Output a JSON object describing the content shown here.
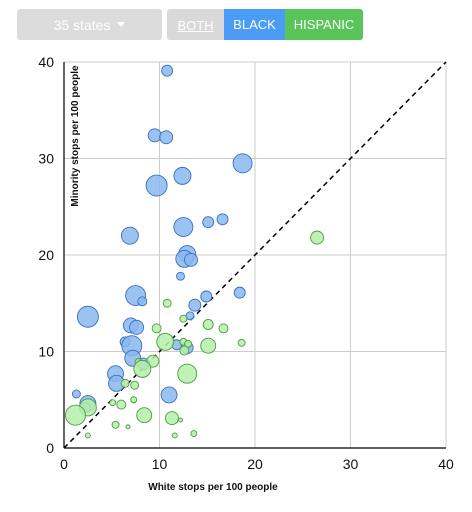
{
  "controls": {
    "state_select": "35 states",
    "toggle_both": "BOTH",
    "toggle_black": "BLACK",
    "toggle_hispanic": "HISPANIC"
  },
  "colors": {
    "black_fill": "#8ab8f0",
    "black_stroke": "#3a6fc0",
    "hispanic_fill": "#b5eeaa",
    "hispanic_stroke": "#4a9e3e",
    "grid": "#cccccc",
    "axis": "#000000",
    "reference_line": "#000000"
  },
  "chart_data": {
    "type": "scatter",
    "xlabel": "White stops per 100 people",
    "ylabel": "Minority stops per 100 people",
    "xlim": [
      0,
      40
    ],
    "ylim": [
      0,
      40
    ],
    "x_ticks": [
      0,
      10,
      20,
      30,
      40
    ],
    "y_ticks": [
      0,
      10,
      20,
      30,
      40
    ],
    "grid": true,
    "reference_line": "y = x (dashed)",
    "series": [
      {
        "name": "BLACK",
        "points": [
          {
            "x": 10.8,
            "y": 39.1,
            "r": 5.5
          },
          {
            "x": 9.5,
            "y": 32.4,
            "r": 6.5
          },
          {
            "x": 10.7,
            "y": 32.2,
            "r": 6.5
          },
          {
            "x": 18.7,
            "y": 29.5,
            "r": 9.5
          },
          {
            "x": 9.7,
            "y": 27.2,
            "r": 10.5
          },
          {
            "x": 12.4,
            "y": 28.2,
            "r": 8.5
          },
          {
            "x": 15.1,
            "y": 23.4,
            "r": 5.5
          },
          {
            "x": 16.6,
            "y": 23.7,
            "r": 5.5
          },
          {
            "x": 12.5,
            "y": 22.9,
            "r": 9.5
          },
          {
            "x": 6.9,
            "y": 22.0,
            "r": 8.5
          },
          {
            "x": 12.9,
            "y": 20.1,
            "r": 8.5
          },
          {
            "x": 12.6,
            "y": 19.6,
            "r": 8.5
          },
          {
            "x": 13.3,
            "y": 19.5,
            "r": 6.5
          },
          {
            "x": 12.2,
            "y": 17.8,
            "r": 4.0
          },
          {
            "x": 7.5,
            "y": 15.8,
            "r": 10.0
          },
          {
            "x": 8.2,
            "y": 15.2,
            "r": 4.5
          },
          {
            "x": 18.4,
            "y": 16.1,
            "r": 5.5
          },
          {
            "x": 14.9,
            "y": 15.7,
            "r": 5.5
          },
          {
            "x": 2.5,
            "y": 13.6,
            "r": 10.5
          },
          {
            "x": 13.7,
            "y": 14.8,
            "r": 6.0
          },
          {
            "x": 13.2,
            "y": 13.7,
            "r": 4.0
          },
          {
            "x": 7.0,
            "y": 12.7,
            "r": 7.5
          },
          {
            "x": 7.6,
            "y": 12.5,
            "r": 7.0
          },
          {
            "x": 6.4,
            "y": 11.0,
            "r": 5.0
          },
          {
            "x": 7.1,
            "y": 10.6,
            "r": 10.0
          },
          {
            "x": 12.9,
            "y": 10.4,
            "r": 6.0
          },
          {
            "x": 11.8,
            "y": 10.7,
            "r": 5.0
          },
          {
            "x": 7.2,
            "y": 9.3,
            "r": 8.0
          },
          {
            "x": 8.3,
            "y": 8.7,
            "r": 6.0
          },
          {
            "x": 5.4,
            "y": 7.7,
            "r": 8.0
          },
          {
            "x": 5.5,
            "y": 6.7,
            "r": 8.0
          },
          {
            "x": 1.3,
            "y": 5.6,
            "r": 4.0
          },
          {
            "x": 11.0,
            "y": 5.5,
            "r": 8.0
          },
          {
            "x": 2.5,
            "y": 4.6,
            "r": 8.0
          },
          {
            "x": 2.2,
            "y": 4.2,
            "r": 5.0
          }
        ]
      },
      {
        "name": "HISPANIC",
        "points": [
          {
            "x": 26.5,
            "y": 21.8,
            "r": 6.5
          },
          {
            "x": 10.8,
            "y": 15.0,
            "r": 4.0
          },
          {
            "x": 12.5,
            "y": 13.4,
            "r": 3.5
          },
          {
            "x": 9.7,
            "y": 12.4,
            "r": 4.5
          },
          {
            "x": 15.1,
            "y": 12.8,
            "r": 5.0
          },
          {
            "x": 16.7,
            "y": 12.4,
            "r": 4.5
          },
          {
            "x": 10.6,
            "y": 11.0,
            "r": 8.5
          },
          {
            "x": 12.5,
            "y": 11.0,
            "r": 3.5
          },
          {
            "x": 13.0,
            "y": 10.8,
            "r": 3.5
          },
          {
            "x": 12.6,
            "y": 10.1,
            "r": 4.5
          },
          {
            "x": 15.1,
            "y": 10.6,
            "r": 7.5
          },
          {
            "x": 18.6,
            "y": 10.9,
            "r": 3.5
          },
          {
            "x": 9.3,
            "y": 9.0,
            "r": 6.0
          },
          {
            "x": 7.8,
            "y": 8.9,
            "r": 3.5
          },
          {
            "x": 8.2,
            "y": 8.2,
            "r": 8.5
          },
          {
            "x": 12.9,
            "y": 7.7,
            "r": 9.5
          },
          {
            "x": 6.4,
            "y": 6.7,
            "r": 4.0
          },
          {
            "x": 7.4,
            "y": 6.5,
            "r": 4.0
          },
          {
            "x": 7.3,
            "y": 5.0,
            "r": 3.0
          },
          {
            "x": 6.0,
            "y": 4.5,
            "r": 4.5
          },
          {
            "x": 2.5,
            "y": 4.2,
            "r": 8.5
          },
          {
            "x": 5.1,
            "y": 4.7,
            "r": 3.0
          },
          {
            "x": 8.4,
            "y": 3.4,
            "r": 7.5
          },
          {
            "x": 1.2,
            "y": 3.4,
            "r": 10.0
          },
          {
            "x": 11.3,
            "y": 3.1,
            "r": 6.5
          },
          {
            "x": 12.2,
            "y": 2.9,
            "r": 2.0
          },
          {
            "x": 6.7,
            "y": 2.2,
            "r": 2.0
          },
          {
            "x": 5.4,
            "y": 2.4,
            "r": 3.5
          },
          {
            "x": 13.6,
            "y": 1.5,
            "r": 3.0
          },
          {
            "x": 11.6,
            "y": 1.3,
            "r": 2.5
          },
          {
            "x": 2.5,
            "y": 1.3,
            "r": 2.5
          }
        ]
      }
    ]
  }
}
